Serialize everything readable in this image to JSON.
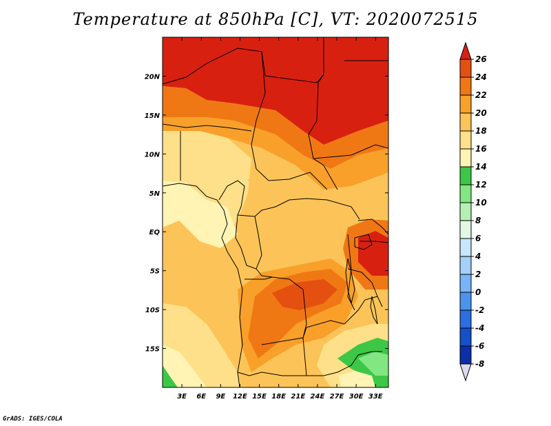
{
  "title": "Temperature at 850hPa [C], VT: 2020072515",
  "credit": "GrADS: IGES/COLA",
  "map": {
    "lon_range": [
      0,
      35
    ],
    "lat_range": [
      -20,
      25
    ],
    "lon_ticks": [
      {
        "value": 3,
        "label": "3E"
      },
      {
        "value": 6,
        "label": "6E"
      },
      {
        "value": 9,
        "label": "9E"
      },
      {
        "value": 12,
        "label": "12E"
      },
      {
        "value": 15,
        "label": "15E"
      },
      {
        "value": 18,
        "label": "18E"
      },
      {
        "value": 21,
        "label": "21E"
      },
      {
        "value": 24,
        "label": "24E"
      },
      {
        "value": 27,
        "label": "27E"
      },
      {
        "value": 30,
        "label": "30E"
      },
      {
        "value": 33,
        "label": "33E"
      }
    ],
    "lat_ticks": [
      {
        "value": 20,
        "label": "20N"
      },
      {
        "value": 15,
        "label": "15N"
      },
      {
        "value": 10,
        "label": "10N"
      },
      {
        "value": 5,
        "label": "5N"
      },
      {
        "value": 0,
        "label": "EQ"
      },
      {
        "value": -5,
        "label": "5S"
      },
      {
        "value": -10,
        "label": "10S"
      },
      {
        "value": -15,
        "label": "15S"
      }
    ]
  },
  "colorbar": {
    "min_label": "-8",
    "levels": [
      {
        "label": "-8",
        "color": "#140078"
      },
      {
        "label": "-6",
        "color": "#0a2fa8"
      },
      {
        "label": "-4",
        "color": "#1450c8"
      },
      {
        "label": "-2",
        "color": "#2a6ee0"
      },
      {
        "label": "0",
        "color": "#4a94ee"
      },
      {
        "label": "2",
        "color": "#78b4f6"
      },
      {
        "label": "4",
        "color": "#a4d0fa"
      },
      {
        "label": "6",
        "color": "#c8e6fc"
      },
      {
        "label": "8",
        "color": "#e4f6e4"
      },
      {
        "label": "10",
        "color": "#b4f0b4"
      },
      {
        "label": "12",
        "color": "#82e682"
      },
      {
        "label": "14",
        "color": "#3cc846"
      },
      {
        "label": "16",
        "color": "#fff4b4"
      },
      {
        "label": "18",
        "color": "#fde089"
      },
      {
        "label": "20",
        "color": "#fcc458"
      },
      {
        "label": "22",
        "color": "#f8a02a"
      },
      {
        "label": "24",
        "color": "#f07814"
      },
      {
        "label": "26",
        "color": "#e45010"
      }
    ],
    "top_color": "#d82010",
    "bottom_color": "#dcdcf0"
  }
}
